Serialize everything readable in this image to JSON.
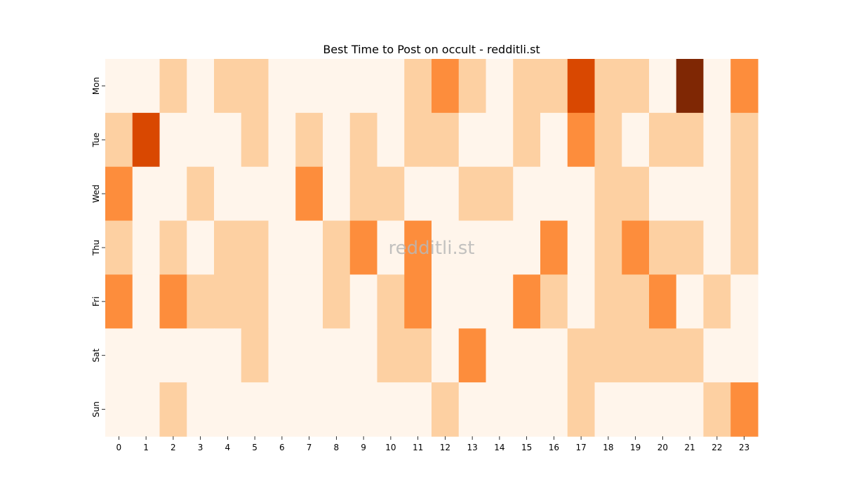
{
  "chart_data": {
    "type": "heatmap",
    "title": "Best Time to Post on occult - redditli.st",
    "watermark": "redditli.st",
    "xlabel": "",
    "ylabel": "",
    "x_categories": [
      "0",
      "1",
      "2",
      "3",
      "4",
      "5",
      "6",
      "7",
      "8",
      "9",
      "10",
      "11",
      "12",
      "13",
      "14",
      "15",
      "16",
      "17",
      "18",
      "19",
      "20",
      "21",
      "22",
      "23"
    ],
    "y_categories": [
      "Mon",
      "Tue",
      "Wed",
      "Thu",
      "Fri",
      "Sat",
      "Sun"
    ],
    "levels": [
      [
        0,
        0,
        1,
        0,
        1,
        1,
        0,
        0,
        0,
        0,
        0,
        1,
        2,
        1,
        0,
        1,
        1,
        3,
        1,
        1,
        0,
        4,
        0,
        2
      ],
      [
        1,
        3,
        0,
        0,
        0,
        1,
        0,
        1,
        0,
        1,
        0,
        1,
        1,
        0,
        0,
        1,
        0,
        2,
        1,
        0,
        1,
        1,
        0,
        1
      ],
      [
        2,
        0,
        0,
        1,
        0,
        0,
        0,
        2,
        0,
        1,
        1,
        0,
        0,
        1,
        1,
        0,
        0,
        0,
        1,
        1,
        0,
        0,
        0,
        1
      ],
      [
        1,
        0,
        1,
        0,
        1,
        1,
        0,
        0,
        1,
        2,
        0,
        2,
        0,
        0,
        0,
        0,
        2,
        0,
        1,
        2,
        1,
        1,
        0,
        1
      ],
      [
        2,
        0,
        2,
        1,
        1,
        1,
        0,
        0,
        1,
        0,
        1,
        2,
        0,
        0,
        0,
        2,
        1,
        0,
        1,
        1,
        2,
        0,
        1,
        0
      ],
      [
        0,
        0,
        0,
        0,
        0,
        1,
        0,
        0,
        0,
        0,
        1,
        1,
        0,
        2,
        0,
        0,
        0,
        1,
        1,
        1,
        1,
        1,
        0,
        0
      ],
      [
        0,
        0,
        1,
        0,
        0,
        0,
        0,
        0,
        0,
        0,
        0,
        0,
        1,
        0,
        0,
        0,
        0,
        1,
        0,
        0,
        0,
        0,
        1,
        2
      ]
    ],
    "colors": [
      "#fff5eb",
      "#fdd0a2",
      "#fd8d3c",
      "#d94801",
      "#7f2704"
    ],
    "grid": false,
    "colorbar": false
  }
}
